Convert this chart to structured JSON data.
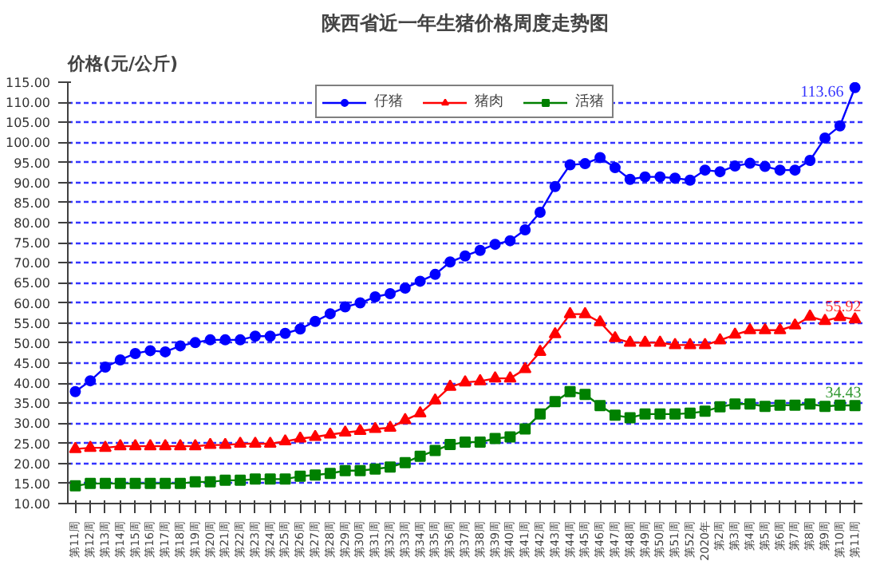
{
  "chart_data": {
    "type": "line",
    "title": "陕西省近一年生猪价格周度走势图",
    "ylabel": "价格(元/公斤)",
    "categories": [
      "第11周",
      "第12周",
      "第13周",
      "第14周",
      "第15周",
      "第16周",
      "第17周",
      "第18周",
      "第19周",
      "第20周",
      "第21周",
      "第22周",
      "第23周",
      "第24周",
      "第25周",
      "第26周",
      "第27周",
      "第28周",
      "第29周",
      "第30周",
      "第31周",
      "第32周",
      "第33周",
      "第34周",
      "第35周",
      "第36周",
      "第37周",
      "第38周",
      "第39周",
      "第40周",
      "第41周",
      "第42周",
      "第43周",
      "第44周",
      "第45周",
      "第46周",
      "第47周",
      "第48周",
      "第49周",
      "第50周",
      "第51周",
      "第52周",
      "2020年",
      "第2周",
      "第3周",
      "第4周",
      "第5周",
      "第6周",
      "第7周",
      "第8周",
      "第9周",
      "第10周",
      "第11周"
    ],
    "series": [
      {
        "name": "仔猪",
        "color": "#0000ff",
        "marker": "circle",
        "values": [
          37.9,
          40.6,
          44.0,
          45.8,
          47.4,
          48.1,
          47.8,
          49.3,
          50.1,
          50.8,
          50.8,
          50.8,
          51.7,
          51.7,
          52.4,
          53.5,
          55.4,
          57.3,
          59.0,
          60.0,
          61.5,
          62.3,
          63.7,
          65.4,
          67.1,
          70.2,
          71.7,
          73.1,
          74.6,
          75.5,
          78.2,
          82.6,
          89.0,
          94.4,
          94.7,
          96.2,
          93.7,
          90.8,
          91.4,
          91.4,
          91.1,
          90.6,
          93.1,
          92.7,
          94.1,
          94.8,
          94.0,
          93.1,
          93.1,
          95.5,
          101.1,
          104.1,
          113.66
        ],
        "value_labels": [
          null,
          null,
          null,
          null,
          null,
          null,
          null,
          null,
          null,
          null,
          null,
          null,
          null,
          null,
          null,
          null,
          null,
          null,
          null,
          null,
          null,
          null,
          null,
          null,
          null,
          null,
          null,
          null,
          null,
          null,
          null,
          null,
          null,
          null,
          null,
          null,
          null,
          null,
          null,
          null,
          null,
          null,
          null,
          null,
          null,
          null,
          null,
          null,
          null,
          null,
          null,
          null,
          "113.66"
        ]
      },
      {
        "name": "猪肉",
        "color": "#ff0000",
        "marker": "triangle",
        "values": [
          23.6,
          23.9,
          23.9,
          24.3,
          24.3,
          24.3,
          24.3,
          24.3,
          24.3,
          24.6,
          24.6,
          24.9,
          24.9,
          24.9,
          25.5,
          26.2,
          26.6,
          27.2,
          27.7,
          28.1,
          28.6,
          28.9,
          30.8,
          32.5,
          35.7,
          39.1,
          40.2,
          40.5,
          41.2,
          41.2,
          43.5,
          47.8,
          52.2,
          57.2,
          57.2,
          55.2,
          51.2,
          50.1,
          50.1,
          50.1,
          49.5,
          49.5,
          49.5,
          50.7,
          52.1,
          53.2,
          53.2,
          53.2,
          54.4,
          56.6,
          55.5,
          56.5,
          55.92
        ],
        "value_labels": [
          null,
          null,
          null,
          null,
          null,
          null,
          null,
          null,
          null,
          null,
          null,
          null,
          null,
          null,
          null,
          null,
          null,
          null,
          null,
          null,
          null,
          null,
          null,
          null,
          null,
          null,
          null,
          null,
          null,
          null,
          null,
          null,
          null,
          null,
          null,
          null,
          null,
          null,
          null,
          null,
          null,
          null,
          null,
          null,
          null,
          null,
          null,
          null,
          null,
          null,
          null,
          null,
          "55.92"
        ]
      },
      {
        "name": "活猪",
        "color": "#008000",
        "marker": "square",
        "values": [
          14.4,
          15.0,
          15.0,
          15.0,
          15.0,
          15.0,
          15.0,
          15.0,
          15.4,
          15.4,
          15.8,
          15.8,
          16.1,
          16.1,
          16.1,
          16.8,
          17.1,
          17.5,
          18.2,
          18.2,
          18.6,
          19.1,
          20.2,
          21.8,
          23.2,
          24.7,
          25.3,
          25.3,
          26.2,
          26.6,
          28.6,
          32.3,
          35.4,
          37.9,
          37.2,
          34.4,
          32.0,
          31.4,
          32.3,
          32.3,
          32.3,
          32.5,
          33.0,
          34.1,
          34.8,
          34.8,
          34.2,
          34.5,
          34.5,
          34.8,
          34.2,
          34.5,
          34.43
        ],
        "value_labels": [
          null,
          null,
          null,
          null,
          null,
          null,
          null,
          null,
          null,
          null,
          null,
          null,
          null,
          null,
          null,
          null,
          null,
          null,
          null,
          null,
          null,
          null,
          null,
          null,
          null,
          null,
          null,
          null,
          null,
          null,
          null,
          null,
          null,
          null,
          null,
          null,
          null,
          null,
          null,
          null,
          null,
          null,
          null,
          null,
          null,
          null,
          null,
          null,
          null,
          null,
          null,
          null,
          "34.43"
        ]
      }
    ],
    "ylim": [
      10,
      115
    ],
    "yticks": [
      {
        "value": 10,
        "label": "10.00"
      },
      {
        "value": 15,
        "label": "15.00"
      },
      {
        "value": 20,
        "label": "20.00"
      },
      {
        "value": 25,
        "label": "25.00"
      },
      {
        "value": 30,
        "label": "30.00"
      },
      {
        "value": 35,
        "label": "35.00"
      },
      {
        "value": 40,
        "label": "40.00"
      },
      {
        "value": 45,
        "label": "45.00"
      },
      {
        "value": 50,
        "label": "50.00"
      },
      {
        "value": 55,
        "label": "55.00"
      },
      {
        "value": 60,
        "label": "60.00"
      },
      {
        "value": 65,
        "label": "65.00"
      },
      {
        "value": 70,
        "label": "70.00"
      },
      {
        "value": 75,
        "label": "75.00"
      },
      {
        "value": 80,
        "label": "80.00"
      },
      {
        "value": 85,
        "label": "85.00"
      },
      {
        "value": 90,
        "label": "90.00"
      },
      {
        "value": 95,
        "label": "95.00"
      },
      {
        "value": 100,
        "label": "100.00"
      },
      {
        "value": 105,
        "label": "105.00"
      },
      {
        "value": 110,
        "label": "110.00"
      },
      {
        "value": 115,
        "label": "115.00"
      }
    ],
    "grid": "y",
    "legend": "top",
    "line_style": "solid"
  }
}
